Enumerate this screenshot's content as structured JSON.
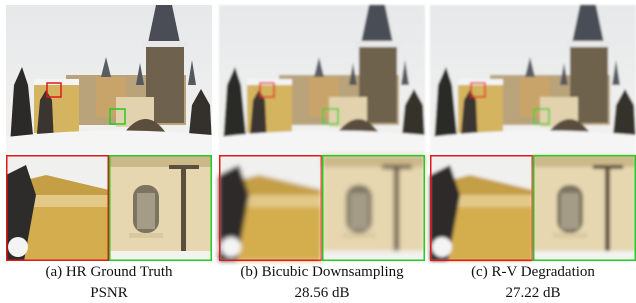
{
  "panels": [
    {
      "caption": "(a) HR Ground Truth",
      "metric": "PSNR"
    },
    {
      "caption": "(b) Bicubic Downsampling",
      "metric": "28.56 dB"
    },
    {
      "caption": "(c) R-V Degradation",
      "metric": "27.22 dB"
    }
  ]
}
